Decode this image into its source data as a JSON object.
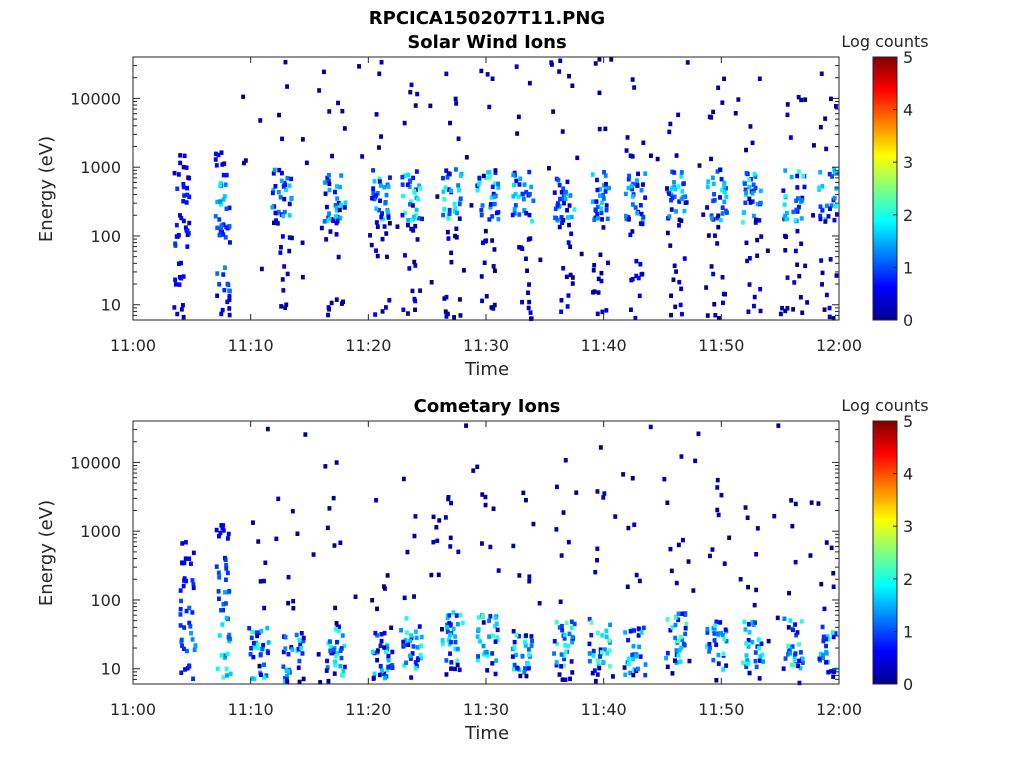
{
  "figure_title": "RPCICA150207T11.PNG",
  "chart_data": [
    {
      "type": "heatmap",
      "title": "Solar Wind Ions",
      "xlabel": "Time",
      "ylabel": "Energy (eV)",
      "x_ticks": [
        "11:00",
        "11:10",
        "11:20",
        "11:30",
        "11:40",
        "11:50",
        "12:00"
      ],
      "xlim": [
        "11:00",
        "12:00"
      ],
      "y_ticks": [
        "10",
        "100",
        "1000",
        "10000"
      ],
      "y_tick_values": [
        10,
        100,
        1000,
        10000
      ],
      "ylim": [
        6,
        40000
      ],
      "y_scale": "log",
      "colorbar": {
        "label": "Log counts",
        "ticks": [
          "0",
          "1",
          "2",
          "3",
          "4",
          "5"
        ],
        "range": [
          0,
          5
        ],
        "colormap": "jet"
      },
      "dense_blocks": [
        {
          "t": "11:04",
          "levels": [
            {
              "e": 8,
              "v": 0.5
            },
            {
              "e": 30,
              "v": 0.6
            },
            {
              "e": 100,
              "v": 0.8
            },
            {
              "e": 150,
              "v": 0.7
            },
            {
              "e": 480,
              "v": 0.8
            },
            {
              "e": 1100,
              "v": 0.5
            }
          ]
        },
        {
          "t": "11:07.5",
          "levels": [
            {
              "e": 10,
              "v": 0.5
            },
            {
              "e": 25,
              "v": 1.2
            },
            {
              "e": 100,
              "v": 0.9
            },
            {
              "e": 200,
              "v": 1.0
            },
            {
              "e": 450,
              "v": 1.6
            },
            {
              "e": 1200,
              "v": 0.6
            }
          ]
        }
      ],
      "bursts": [
        {
          "t": "11:12.5",
          "e": 430,
          "v": 1.6
        },
        {
          "t": "11:17",
          "e": 380,
          "v": 1.7
        },
        {
          "t": "11:21",
          "e": 420,
          "v": 1.8
        },
        {
          "t": "11:23.5",
          "e": 400,
          "v": 2.0
        },
        {
          "t": "11:27",
          "e": 430,
          "v": 1.9
        },
        {
          "t": "11:30",
          "e": 400,
          "v": 2.1
        },
        {
          "t": "11:33",
          "e": 420,
          "v": 1.9
        },
        {
          "t": "11:36.5",
          "e": 400,
          "v": 1.8
        },
        {
          "t": "11:39.5",
          "e": 420,
          "v": 1.6
        },
        {
          "t": "11:42.5",
          "e": 380,
          "v": 1.5
        },
        {
          "t": "11:46",
          "e": 400,
          "v": 1.9
        },
        {
          "t": "11:49.5",
          "e": 430,
          "v": 1.8
        },
        {
          "t": "11:52.5",
          "e": 380,
          "v": 2.0
        },
        {
          "t": "11:56",
          "e": 420,
          "v": 2.1
        },
        {
          "t": "11:59",
          "e": 430,
          "v": 2.0
        }
      ]
    },
    {
      "type": "heatmap",
      "title": "Cometary Ions",
      "xlabel": "Time",
      "ylabel": "Energy (eV)",
      "x_ticks": [
        "11:00",
        "11:10",
        "11:20",
        "11:30",
        "11:40",
        "11:50",
        "12:00"
      ],
      "xlim": [
        "11:00",
        "12:00"
      ],
      "y_ticks": [
        "10",
        "100",
        "1000",
        "10000"
      ],
      "y_tick_values": [
        10,
        100,
        1000,
        10000
      ],
      "ylim": [
        6,
        40000
      ],
      "y_scale": "log",
      "colorbar": {
        "label": "Log counts",
        "ticks": [
          "0",
          "1",
          "2",
          "3",
          "4",
          "5"
        ],
        "range": [
          0,
          5
        ],
        "colormap": "jet"
      },
      "dense_blocks": [
        {
          "t": "11:04.5",
          "levels": [
            {
              "e": 8,
              "v": 0.8
            },
            {
              "e": 25,
              "v": 1.2
            },
            {
              "e": 60,
              "v": 1.0
            },
            {
              "e": 150,
              "v": 0.8
            },
            {
              "e": 500,
              "v": 0.6
            }
          ]
        },
        {
          "t": "11:07.5",
          "levels": [
            {
              "e": 12,
              "v": 1.8
            },
            {
              "e": 40,
              "v": 1.5
            },
            {
              "e": 100,
              "v": 1.2
            },
            {
              "e": 300,
              "v": 0.9
            },
            {
              "e": 900,
              "v": 0.5
            }
          ]
        }
      ],
      "bursts": [
        {
          "t": "11:10.5",
          "e": 18,
          "v": 2.0
        },
        {
          "t": "11:13.5",
          "e": 15,
          "v": 1.8
        },
        {
          "t": "11:17",
          "e": 20,
          "v": 2.0
        },
        {
          "t": "11:21",
          "e": 18,
          "v": 1.9
        },
        {
          "t": "11:23.5",
          "e": 25,
          "v": 2.0
        },
        {
          "t": "11:27",
          "e": 30,
          "v": 2.0
        },
        {
          "t": "11:30",
          "e": 28,
          "v": 2.1
        },
        {
          "t": "11:33",
          "e": 22,
          "v": 2.0
        },
        {
          "t": "11:36.5",
          "e": 25,
          "v": 2.2
        },
        {
          "t": "11:39.5",
          "e": 24,
          "v": 2.2
        },
        {
          "t": "11:42.5",
          "e": 20,
          "v": 1.9
        },
        {
          "t": "11:46",
          "e": 30,
          "v": 2.1
        },
        {
          "t": "11:49.5",
          "e": 24,
          "v": 2.0
        },
        {
          "t": "11:52.5",
          "e": 22,
          "v": 2.0
        },
        {
          "t": "11:56",
          "e": 25,
          "v": 2.1
        },
        {
          "t": "11:59",
          "e": 20,
          "v": 1.9
        }
      ]
    }
  ]
}
